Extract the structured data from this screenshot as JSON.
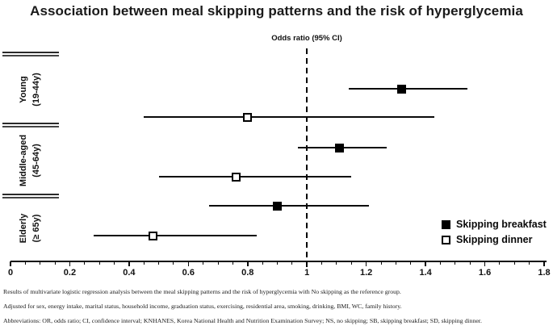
{
  "title": "Association between meal skipping patterns and the risk of hyperglycemia",
  "chart_data": {
    "type": "forest",
    "axis_title": "Odds ratio (95% CI)",
    "x_axis": {
      "min": 0,
      "max": 1.8,
      "major_ticks": [
        0,
        0.2,
        0.4,
        0.6,
        0.8,
        1,
        1.2,
        1.4,
        1.6,
        1.8
      ],
      "tick_labels": [
        "0",
        "0.2",
        "0.4",
        "0.6",
        "0.8",
        "1",
        "1.2",
        "1.4",
        "1.6",
        "1.8"
      ],
      "minor_tick_step": 0.05,
      "reference_line": 1
    },
    "groups": [
      {
        "name": "Young",
        "age_range": "(19-44y)",
        "estimates": [
          {
            "series": "Skipping breakfast",
            "or": 1.32,
            "ci_low": 1.14,
            "ci_high": 1.54
          },
          {
            "series": "Skipping dinner",
            "or": 0.8,
            "ci_low": 0.45,
            "ci_high": 1.43
          }
        ]
      },
      {
        "name": "Middle-aged",
        "age_range": "(45-64y)",
        "estimates": [
          {
            "series": "Skipping breakfast",
            "or": 1.11,
            "ci_low": 0.97,
            "ci_high": 1.27
          },
          {
            "series": "Skipping dinner",
            "or": 0.76,
            "ci_low": 0.5,
            "ci_high": 1.15
          }
        ]
      },
      {
        "name": "Elderly",
        "age_range": "(≥ 65y)",
        "estimates": [
          {
            "series": "Skipping breakfast",
            "or": 0.9,
            "ci_low": 0.67,
            "ci_high": 1.21
          },
          {
            "series": "Skipping dinner",
            "or": 0.48,
            "ci_low": 0.28,
            "ci_high": 0.83
          }
        ]
      }
    ],
    "legend": [
      {
        "label": "Skipping breakfast",
        "marker": "filled-square"
      },
      {
        "label": "Skipping dinner",
        "marker": "open-square"
      }
    ],
    "colors": {
      "marker_fill": "#000000",
      "line": "#000000",
      "background": "#ffffff"
    }
  },
  "footnotes": [
    "Results of multivariate logistic regression analysis between the meal skipping patterns and the risk of hyperglycemia with No skipping as the reference group.",
    "Adjusted for sex, energy intake, marital status, household income, graduation status, exercising, residential area, smoking, drinking, BMI, WC, family history.",
    "Abbreviations: OR, odds ratio; CI, confidence interval; KNHANES, Korea National Health and Nutrition Examination Survey; NS, no skipping; SB, skipping breakfast; SD, skipping dinner."
  ]
}
